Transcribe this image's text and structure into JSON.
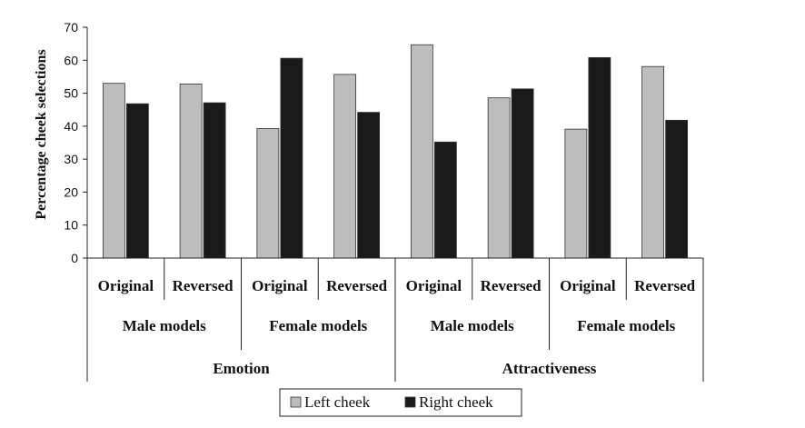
{
  "chart_data": {
    "type": "bar",
    "ylabel": "Percentage cheek selections",
    "ylim": [
      0,
      70
    ],
    "yticks": [
      0,
      10,
      20,
      30,
      40,
      50,
      60,
      70
    ],
    "grid": false,
    "legend_position": "bottom",
    "categories": [
      "Original",
      "Reversed",
      "Original",
      "Reversed",
      "Original",
      "Reversed",
      "Original",
      "Reversed"
    ],
    "groups_level2": [
      "Male models",
      "Female models",
      "Male models",
      "Female models"
    ],
    "groups_level3": [
      "Emotion",
      "Attractiveness"
    ],
    "series": [
      {
        "name": "Left cheek",
        "color": "#bdbdbd",
        "values": [
          53,
          52.8,
          39.3,
          55.7,
          64.7,
          48.6,
          39.1,
          58.1
        ]
      },
      {
        "name": "Right cheek",
        "color": "#1a1a1a",
        "values": [
          46.8,
          47.1,
          60.6,
          44.2,
          35.2,
          51.3,
          60.8,
          41.8
        ]
      }
    ]
  }
}
